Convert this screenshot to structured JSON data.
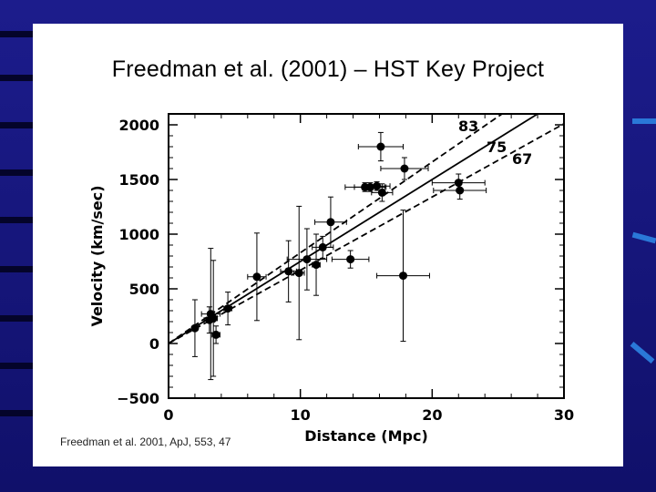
{
  "slide": {
    "title": "Freedman et al. (2001) – HST Key Project",
    "citation": "Freedman et al. 2001, ApJ, 553, 47",
    "colors": {
      "background": "#1c1c8c",
      "panel": "#ffffff",
      "accent": "#2a78d8"
    }
  },
  "chart_data": {
    "type": "scatter",
    "xlabel": "Distance (Mpc)",
    "ylabel": "Velocity (km/sec)",
    "xlim": [
      0,
      30
    ],
    "ylim": [
      -500,
      2100
    ],
    "xticks": [
      0,
      10,
      20,
      30
    ],
    "yticks": [
      -500,
      0,
      500,
      1000,
      1500,
      2000
    ],
    "grid": false,
    "points": [
      {
        "x": 2.0,
        "y": 140,
        "xerr": 0.2,
        "yerr": 260
      },
      {
        "x": 3.1,
        "y": 215,
        "xerr": 0.4,
        "yerr": 120
      },
      {
        "x": 3.2,
        "y": 270,
        "xerr": 0.7,
        "yerr": 600
      },
      {
        "x": 3.4,
        "y": 230,
        "xerr": 0.3,
        "yerr": 530
      },
      {
        "x": 3.6,
        "y": 80,
        "xerr": 0.3,
        "yerr": 80
      },
      {
        "x": 4.5,
        "y": 320,
        "xerr": 0.3,
        "yerr": 150
      },
      {
        "x": 6.7,
        "y": 610,
        "xerr": 0.7,
        "yerr": 400
      },
      {
        "x": 9.1,
        "y": 660,
        "xerr": 0.6,
        "yerr": 280
      },
      {
        "x": 9.9,
        "y": 645,
        "xerr": 0.4,
        "yerr": 610
      },
      {
        "x": 10.5,
        "y": 770,
        "xerr": 1.5,
        "yerr": 280
      },
      {
        "x": 11.2,
        "y": 720,
        "xerr": 0.3,
        "yerr": 280
      },
      {
        "x": 11.7,
        "y": 880,
        "xerr": 0.8,
        "yerr": 100
      },
      {
        "x": 12.3,
        "y": 1110,
        "xerr": 1.2,
        "yerr": 230
      },
      {
        "x": 13.8,
        "y": 770,
        "xerr": 1.4,
        "yerr": 80
      },
      {
        "x": 14.9,
        "y": 1430,
        "xerr": 1.5,
        "yerr": 40
      },
      {
        "x": 15.3,
        "y": 1430,
        "xerr": 1.2,
        "yerr": 40
      },
      {
        "x": 15.8,
        "y": 1440,
        "xerr": 1.0,
        "yerr": 40
      },
      {
        "x": 16.2,
        "y": 1380,
        "xerr": 0.8,
        "yerr": 80
      },
      {
        "x": 16.1,
        "y": 1800,
        "xerr": 1.7,
        "yerr": 130
      },
      {
        "x": 17.9,
        "y": 1600,
        "xerr": 1.8,
        "yerr": 100
      },
      {
        "x": 17.8,
        "y": 620,
        "xerr": 2.0,
        "yerr": 600
      },
      {
        "x": 22.0,
        "y": 1470,
        "xerr": 2.0,
        "yerr": 80
      },
      {
        "x": 22.1,
        "y": 1400,
        "xerr": 2.0,
        "yerr": 80
      }
    ],
    "lines": [
      {
        "label": "83",
        "slope": 83,
        "style": "dashed"
      },
      {
        "label": "75",
        "slope": 75,
        "style": "solid"
      },
      {
        "label": "67",
        "slope": 67,
        "style": "dashed"
      }
    ]
  }
}
